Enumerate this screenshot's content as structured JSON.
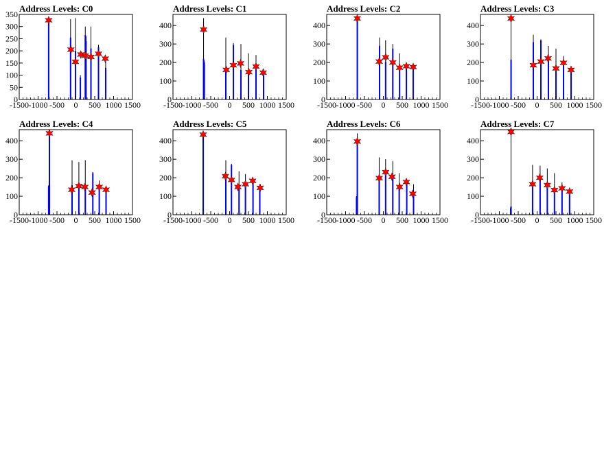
{
  "figure": {
    "background": "#ffffff"
  },
  "style": {
    "histogram_color": "#0000ff",
    "outline_color": "#000000",
    "marker_color": "#ff0000",
    "marker": "star"
  },
  "chart_data": [
    {
      "type": "bar",
      "title": "Address Levels: C0",
      "xlim": [
        -1500,
        1500
      ],
      "ylim": [
        0,
        350
      ],
      "xticks": [
        "-1500",
        "-1000",
        "-500",
        "0",
        "500",
        "1000",
        "1500"
      ],
      "yticks": [
        "0",
        "50",
        "100",
        "150",
        "200",
        "250",
        "300",
        "350"
      ],
      "spikes": [
        {
          "x": -720,
          "black": 340,
          "blue": 335
        },
        {
          "x": -140,
          "black": 330,
          "blue": 255
        },
        {
          "x": -10,
          "black": 335,
          "blue": 200
        },
        {
          "x": 120,
          "black": 100,
          "blue": 90
        },
        {
          "x": 250,
          "black": 300,
          "blue": 265
        },
        {
          "x": 270,
          "black": 260,
          "blue": 240
        },
        {
          "x": 400,
          "black": 300,
          "blue": 210
        },
        {
          "x": 600,
          "black": 225,
          "blue": 215
        },
        {
          "x": 790,
          "black": 165,
          "blue": 130
        }
      ],
      "peaks": [
        {
          "x": -720,
          "y": 326
        },
        {
          "x": -130,
          "y": 205
        },
        {
          "x": -10,
          "y": 155
        },
        {
          "x": 130,
          "y": 185
        },
        {
          "x": 250,
          "y": 180
        },
        {
          "x": 400,
          "y": 175
        },
        {
          "x": 600,
          "y": 188
        },
        {
          "x": 780,
          "y": 168
        }
      ]
    },
    {
      "type": "bar",
      "title": "Address Levels: C1",
      "xlim": [
        -1500,
        1500
      ],
      "ylim": [
        0,
        460
      ],
      "xticks": [
        "-1500",
        "-1000",
        "-500",
        "0",
        "500",
        "1000",
        "1500"
      ],
      "yticks": [
        "0",
        "100",
        "200",
        "300",
        "400"
      ],
      "spikes": [
        {
          "x": -690,
          "black": 440,
          "blue": 220
        },
        {
          "x": -670,
          "black": 210,
          "blue": 200
        },
        {
          "x": -100,
          "black": 335,
          "blue": 160
        },
        {
          "x": 100,
          "black": 305,
          "blue": 295
        },
        {
          "x": 300,
          "black": 300,
          "blue": 160
        },
        {
          "x": 500,
          "black": 250,
          "blue": 160
        },
        {
          "x": 700,
          "black": 240,
          "blue": 175
        },
        {
          "x": 900,
          "black": 165,
          "blue": 150
        }
      ],
      "peaks": [
        {
          "x": -690,
          "y": 378
        },
        {
          "x": -90,
          "y": 160
        },
        {
          "x": 100,
          "y": 185
        },
        {
          "x": 290,
          "y": 195
        },
        {
          "x": 510,
          "y": 148
        },
        {
          "x": 700,
          "y": 178
        },
        {
          "x": 890,
          "y": 145
        }
      ]
    },
    {
      "type": "bar",
      "title": "Address Levels: C2",
      "xlim": [
        -1500,
        1500
      ],
      "ylim": [
        0,
        460
      ],
      "xticks": [
        "-1500",
        "-1000",
        "-500",
        "0",
        "500",
        "1000",
        "1500"
      ],
      "yticks": [
        "0",
        "100",
        "200",
        "300",
        "400"
      ],
      "spikes": [
        {
          "x": -690,
          "black": 440,
          "blue": 440
        },
        {
          "x": -100,
          "black": 335,
          "blue": 290
        },
        {
          "x": 60,
          "black": 320,
          "blue": 205
        },
        {
          "x": 250,
          "black": 300,
          "blue": 275
        },
        {
          "x": 430,
          "black": 250,
          "blue": 175
        },
        {
          "x": 610,
          "black": 200,
          "blue": 190
        },
        {
          "x": 790,
          "black": 190,
          "blue": 170
        }
      ],
      "peaks": [
        {
          "x": -690,
          "y": 438
        },
        {
          "x": -110,
          "y": 205
        },
        {
          "x": 60,
          "y": 228
        },
        {
          "x": 250,
          "y": 200
        },
        {
          "x": 430,
          "y": 172
        },
        {
          "x": 610,
          "y": 180
        },
        {
          "x": 790,
          "y": 175
        }
      ]
    },
    {
      "type": "bar",
      "title": "Address Levels: C3",
      "xlim": [
        -1500,
        1500
      ],
      "ylim": [
        0,
        460
      ],
      "xticks": [
        "-1500",
        "-1000",
        "-500",
        "0",
        "500",
        "1000",
        "1500"
      ],
      "yticks": [
        "0",
        "100",
        "200",
        "300",
        "400"
      ],
      "spikes": [
        {
          "x": -690,
          "black": 440,
          "blue": 215
        },
        {
          "x": -100,
          "black": 350,
          "blue": 310
        },
        {
          "x": 100,
          "black": 325,
          "blue": 320
        },
        {
          "x": 300,
          "black": 290,
          "blue": 220
        },
        {
          "x": 500,
          "black": 275,
          "blue": 160
        },
        {
          "x": 700,
          "black": 235,
          "blue": 200
        },
        {
          "x": 900,
          "black": 160,
          "blue": 150
        }
      ],
      "peaks": [
        {
          "x": -690,
          "y": 438
        },
        {
          "x": -100,
          "y": 185
        },
        {
          "x": 100,
          "y": 205
        },
        {
          "x": 290,
          "y": 222
        },
        {
          "x": 500,
          "y": 168
        },
        {
          "x": 700,
          "y": 198
        },
        {
          "x": 900,
          "y": 160
        }
      ]
    },
    {
      "type": "bar",
      "title": "Address Levels: C4",
      "xlim": [
        -1500,
        1500
      ],
      "ylim": [
        0,
        460
      ],
      "xticks": [
        "-1500",
        "-1000",
        "-500",
        "0",
        "500",
        "1000",
        "1500"
      ],
      "yticks": [
        "0",
        "100",
        "200",
        "300",
        "400"
      ],
      "spikes": [
        {
          "x": -700,
          "black": 440,
          "blue": 440
        },
        {
          "x": -720,
          "black": 160,
          "blue": 155
        },
        {
          "x": -100,
          "black": 295,
          "blue": 160
        },
        {
          "x": 80,
          "black": 285,
          "blue": 165
        },
        {
          "x": 250,
          "black": 295,
          "blue": 160
        },
        {
          "x": 450,
          "black": 230,
          "blue": 225
        },
        {
          "x": 620,
          "black": 185,
          "blue": 150
        },
        {
          "x": 800,
          "black": 150,
          "blue": 130
        }
      ],
      "peaks": [
        {
          "x": -700,
          "y": 440
        },
        {
          "x": -110,
          "y": 135
        },
        {
          "x": 80,
          "y": 155
        },
        {
          "x": 240,
          "y": 150
        },
        {
          "x": 430,
          "y": 120
        },
        {
          "x": 620,
          "y": 150
        },
        {
          "x": 800,
          "y": 135
        }
      ]
    },
    {
      "type": "bar",
      "title": "Address Levels: C5",
      "xlim": [
        -1500,
        1500
      ],
      "ylim": [
        0,
        460
      ],
      "xticks": [
        "-1500",
        "-1000",
        "-500",
        "0",
        "500",
        "1000",
        "1500"
      ],
      "yticks": [
        "0",
        "100",
        "200",
        "300",
        "400"
      ],
      "spikes": [
        {
          "x": -700,
          "black": 440,
          "blue": 430
        },
        {
          "x": -100,
          "black": 295,
          "blue": 210
        },
        {
          "x": 50,
          "black": 275,
          "blue": 270
        },
        {
          "x": 250,
          "black": 235,
          "blue": 150
        },
        {
          "x": 420,
          "black": 220,
          "blue": 160
        },
        {
          "x": 620,
          "black": 195,
          "blue": 190
        },
        {
          "x": 800,
          "black": 165,
          "blue": 145
        }
      ],
      "peaks": [
        {
          "x": -700,
          "y": 433
        },
        {
          "x": -110,
          "y": 208
        },
        {
          "x": 50,
          "y": 188
        },
        {
          "x": 220,
          "y": 150
        },
        {
          "x": 420,
          "y": 165
        },
        {
          "x": 610,
          "y": 183
        },
        {
          "x": 810,
          "y": 145
        }
      ]
    },
    {
      "type": "bar",
      "title": "Address Levels: C6",
      "xlim": [
        -1500,
        1500
      ],
      "ylim": [
        0,
        460
      ],
      "xticks": [
        "-1500",
        "-1000",
        "-500",
        "0",
        "500",
        "1000",
        "1500"
      ],
      "yticks": [
        "0",
        "100",
        "200",
        "300",
        "400"
      ],
      "spikes": [
        {
          "x": -690,
          "black": 440,
          "blue": 400
        },
        {
          "x": -710,
          "black": 100,
          "blue": 95
        },
        {
          "x": -110,
          "black": 310,
          "blue": 200
        },
        {
          "x": 60,
          "black": 300,
          "blue": 235
        },
        {
          "x": 250,
          "black": 290,
          "blue": 210
        },
        {
          "x": 420,
          "black": 225,
          "blue": 150
        },
        {
          "x": 620,
          "black": 185,
          "blue": 175
        },
        {
          "x": 800,
          "black": 165,
          "blue": 110
        }
      ],
      "peaks": [
        {
          "x": -690,
          "y": 396
        },
        {
          "x": -110,
          "y": 198
        },
        {
          "x": 60,
          "y": 230
        },
        {
          "x": 230,
          "y": 205
        },
        {
          "x": 430,
          "y": 150
        },
        {
          "x": 610,
          "y": 177
        },
        {
          "x": 780,
          "y": 113
        }
      ]
    },
    {
      "type": "bar",
      "title": "Address Levels: C7",
      "xlim": [
        -1500,
        1500
      ],
      "ylim": [
        0,
        460
      ],
      "xticks": [
        "-1500",
        "-1000",
        "-500",
        "0",
        "500",
        "1000",
        "1500"
      ],
      "yticks": [
        "0",
        "100",
        "200",
        "300",
        "400"
      ],
      "spikes": [
        {
          "x": -690,
          "black": 440,
          "blue": 45
        },
        {
          "x": -700,
          "black": 40,
          "blue": 35
        },
        {
          "x": -120,
          "black": 270,
          "blue": 165
        },
        {
          "x": 80,
          "black": 265,
          "blue": 200
        },
        {
          "x": 270,
          "black": 250,
          "blue": 160
        },
        {
          "x": 460,
          "black": 225,
          "blue": 135
        },
        {
          "x": 660,
          "black": 175,
          "blue": 140
        },
        {
          "x": 860,
          "black": 140,
          "blue": 120
        }
      ],
      "peaks": [
        {
          "x": -690,
          "y": 448
        },
        {
          "x": -120,
          "y": 165
        },
        {
          "x": 70,
          "y": 200
        },
        {
          "x": 270,
          "y": 160
        },
        {
          "x": 460,
          "y": 133
        },
        {
          "x": 660,
          "y": 143
        },
        {
          "x": 860,
          "y": 125
        }
      ]
    }
  ]
}
